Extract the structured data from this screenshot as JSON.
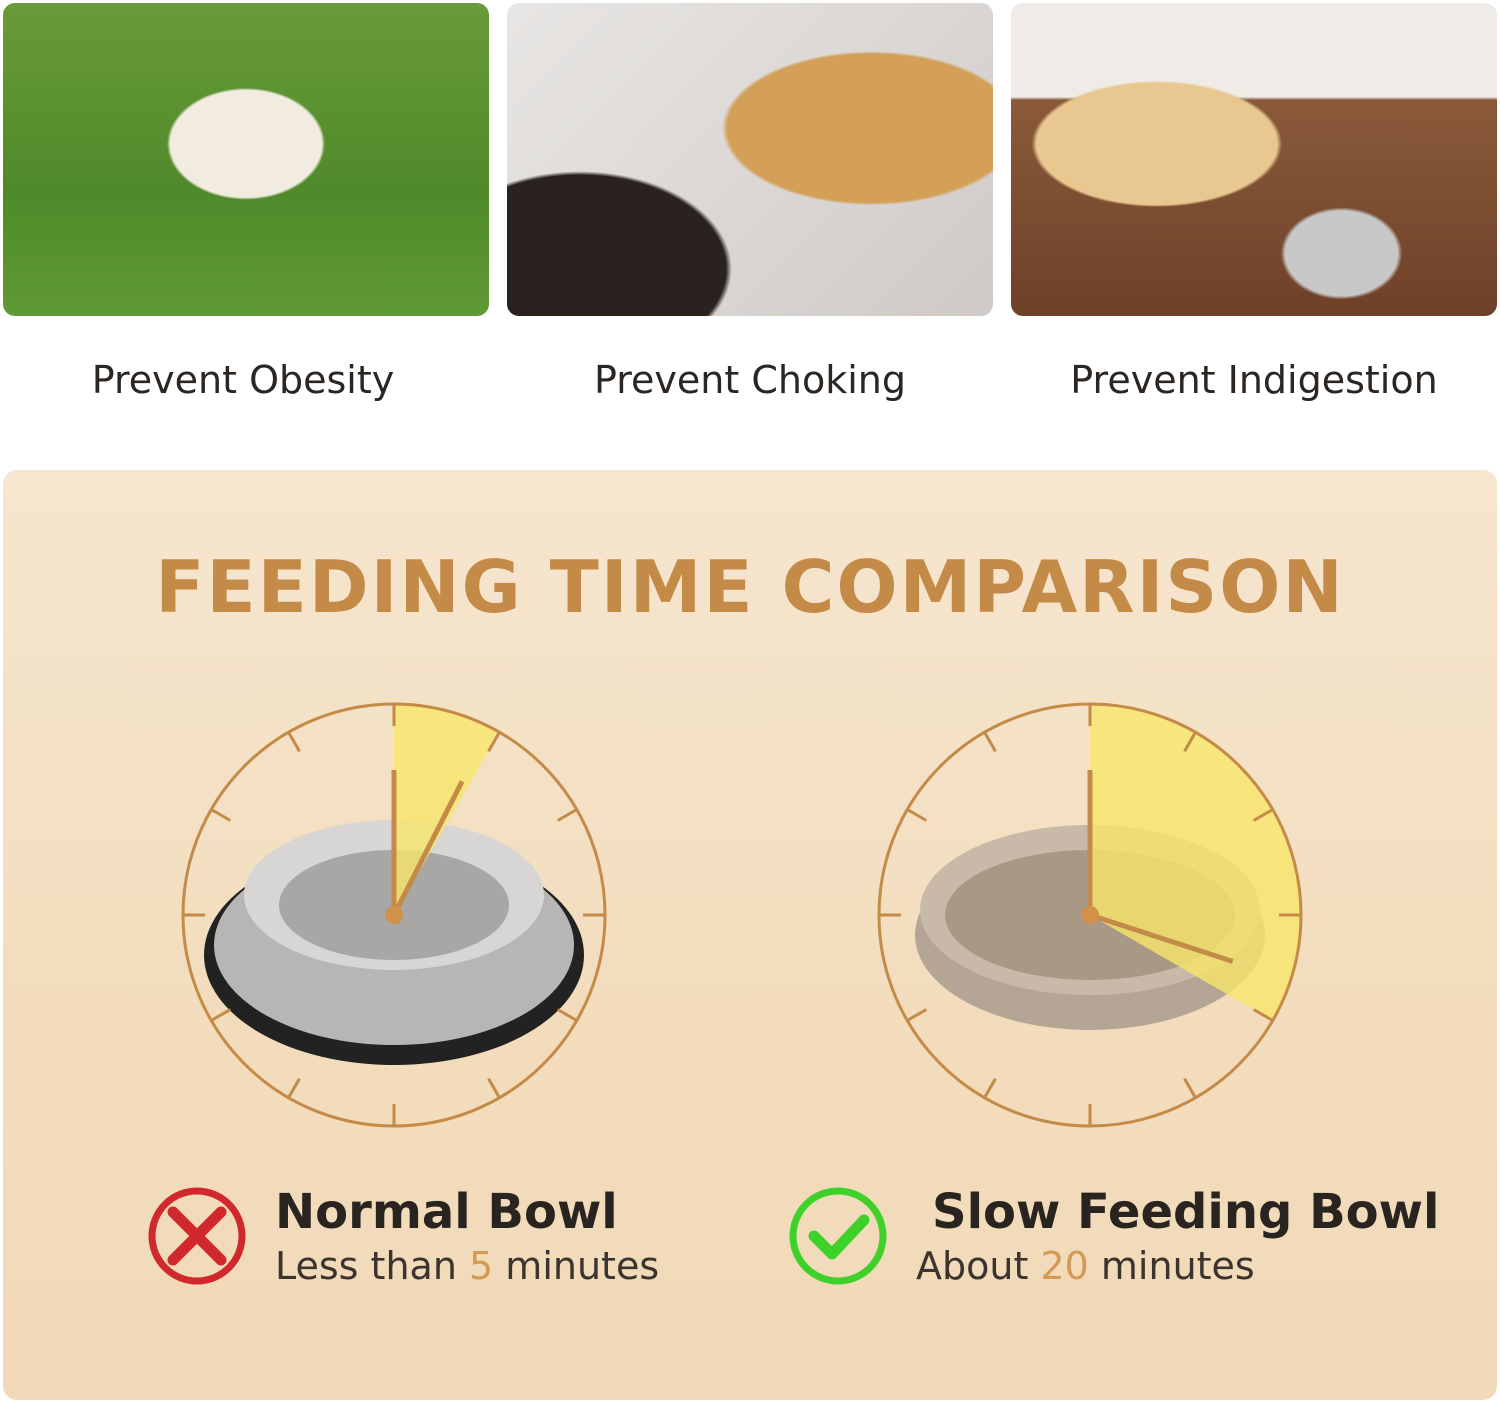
{
  "benefits": [
    {
      "label": "Prevent Obesity",
      "image": "pug-photo"
    },
    {
      "label": "Prevent Choking",
      "image": "golden-retriever-mouth-photo"
    },
    {
      "label": "Prevent Indigestion",
      "image": "labrador-with-bowl-photo"
    }
  ],
  "comparison": {
    "title": "FEEDING TIME COMPARISON",
    "accent_color": "#c48a48",
    "highlight_color": "#f7e66a",
    "items": [
      {
        "name": "Normal Bowl",
        "prefix": "Less than",
        "number": "5",
        "suffix": "minutes",
        "minutes": 5,
        "status": "bad",
        "icon": "x-circle-icon",
        "icon_color": "#d0282c"
      },
      {
        "name": "Slow Feeding Bowl",
        "prefix": "About",
        "number": "20",
        "suffix": "minutes",
        "minutes": 20,
        "status": "good",
        "icon": "check-circle-icon",
        "icon_color": "#3ed12a"
      }
    ]
  }
}
